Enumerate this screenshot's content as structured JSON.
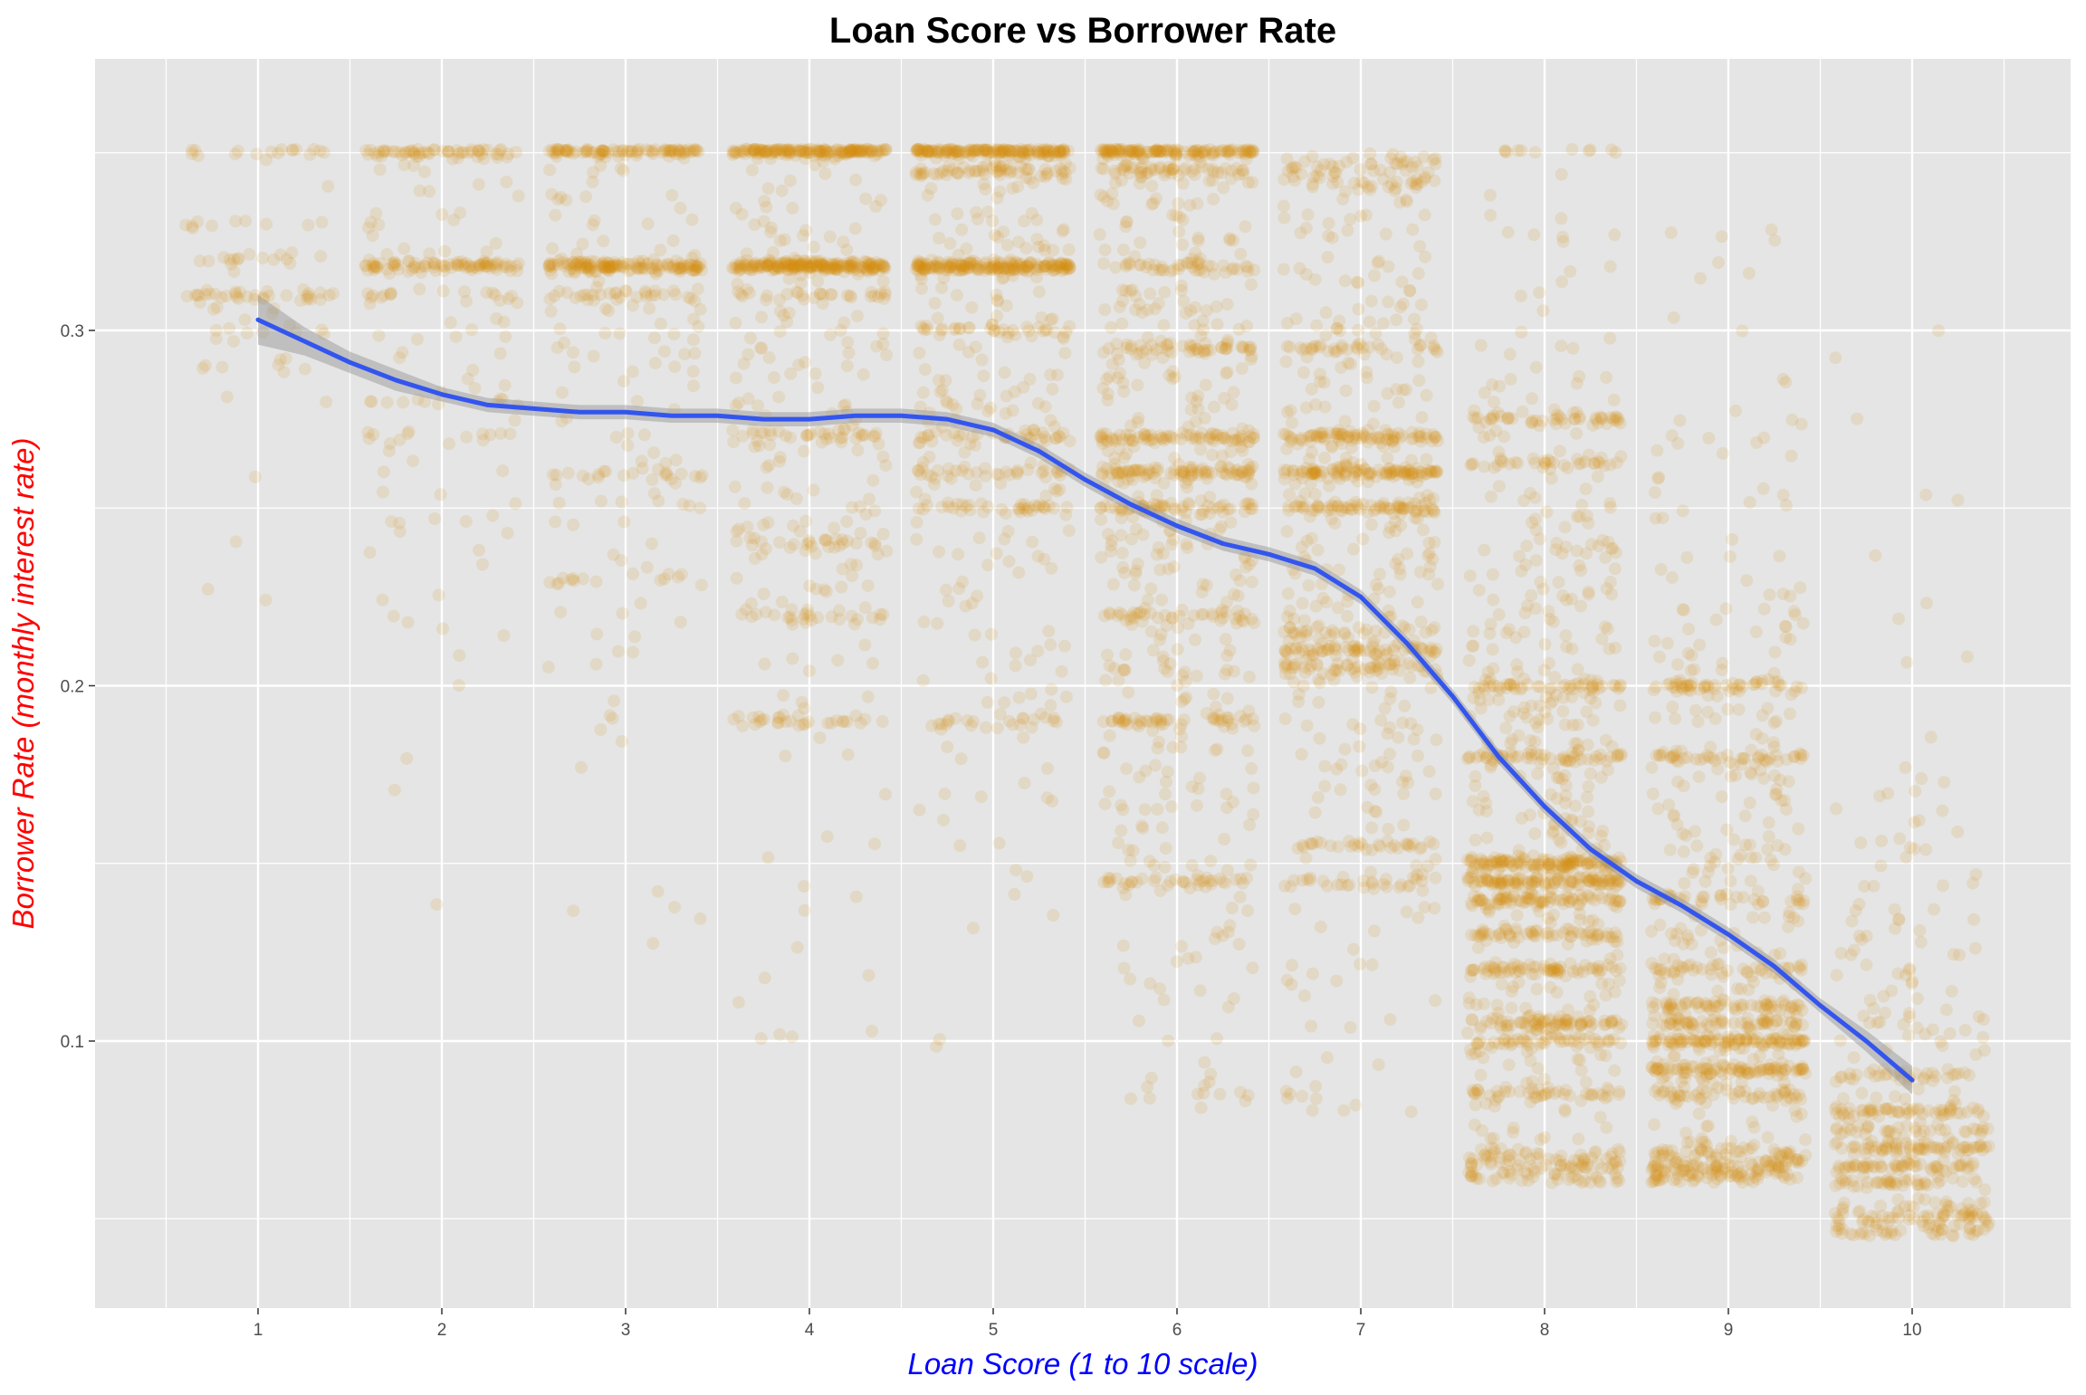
{
  "chart_data": {
    "type": "scatter",
    "title": "Loan Score vs Borrower Rate",
    "xlabel": "Loan Score (1 to 10 scale)",
    "ylabel": "Borrower Rate (monthly interest rate)",
    "xlim": [
      0.1,
      10.55
    ],
    "ylim": [
      0.0375,
      0.3625
    ],
    "x_ticks": [
      1,
      2,
      3,
      4,
      5,
      6,
      7,
      8,
      9,
      10
    ],
    "x_tick_labels": [
      "1",
      "2",
      "3",
      "4",
      "5",
      "6",
      "7",
      "8",
      "9",
      "10"
    ],
    "y_ticks": [
      0.1,
      0.2,
      0.3
    ],
    "y_tick_labels": [
      "0.1",
      "0.2",
      "0.3"
    ],
    "grid": true,
    "jitter_width": 0.42,
    "colors": {
      "points": "#D4900F",
      "smooth_line": "#3355EE",
      "confidence_band": "#999999",
      "panel_background": "#E5E5E5",
      "grid": "#FFFFFF",
      "title": "#000000",
      "xlabel": "#0000FF",
      "ylabel": "#FF0000",
      "tick_labels": "#4D4D4D"
    },
    "series": [
      {
        "type": "scatter",
        "groups": [
          {
            "x": 1,
            "count": 110,
            "bands": [
              [
                0.31,
                0.3
              ],
              [
                0.32,
                0.15
              ],
              [
                0.35,
                0.12
              ],
              [
                0.33,
                0.1
              ],
              [
                0.3,
                0.08
              ],
              [
                0.29,
                0.05
              ]
            ],
            "spread": [
              0.18,
              0.36
            ]
          },
          {
            "x": 2,
            "count": 260,
            "bands": [
              [
                0.318,
                0.3
              ],
              [
                0.31,
                0.08
              ],
              [
                0.35,
                0.08
              ],
              [
                0.28,
                0.05
              ],
              [
                0.27,
                0.05
              ]
            ],
            "spread": [
              0.13,
              0.36
            ]
          },
          {
            "x": 3,
            "count": 420,
            "bands": [
              [
                0.318,
                0.32
              ],
              [
                0.31,
                0.08
              ],
              [
                0.35,
                0.07
              ],
              [
                0.26,
                0.04
              ],
              [
                0.23,
                0.04
              ]
            ],
            "spread": [
              0.12,
              0.36
            ]
          },
          {
            "x": 4,
            "count": 700,
            "bands": [
              [
                0.318,
                0.28
              ],
              [
                0.35,
                0.08
              ],
              [
                0.22,
                0.04
              ],
              [
                0.19,
                0.04
              ],
              [
                0.24,
                0.04
              ],
              [
                0.27,
                0.04
              ],
              [
                0.31,
                0.04
              ]
            ],
            "spread": [
              0.1,
              0.36
            ]
          },
          {
            "x": 5,
            "count": 780,
            "bands": [
              [
                0.318,
                0.22
              ],
              [
                0.35,
                0.08
              ],
              [
                0.345,
                0.06
              ],
              [
                0.26,
                0.05
              ],
              [
                0.27,
                0.04
              ],
              [
                0.25,
                0.04
              ],
              [
                0.19,
                0.03
              ],
              [
                0.3,
                0.03
              ]
            ],
            "spread": [
              0.09,
              0.36
            ]
          },
          {
            "x": 6,
            "count": 1000,
            "bands": [
              [
                0.26,
                0.08
              ],
              [
                0.27,
                0.06
              ],
              [
                0.295,
                0.05
              ],
              [
                0.35,
                0.05
              ],
              [
                0.345,
                0.05
              ],
              [
                0.22,
                0.04
              ],
              [
                0.19,
                0.04
              ],
              [
                0.145,
                0.04
              ],
              [
                0.25,
                0.04
              ],
              [
                0.318,
                0.03
              ]
            ],
            "spread": [
              0.08,
              0.36
            ]
          },
          {
            "x": 7,
            "count": 900,
            "bands": [
              [
                0.26,
                0.12
              ],
              [
                0.27,
                0.08
              ],
              [
                0.25,
                0.07
              ],
              [
                0.21,
                0.06
              ],
              [
                0.205,
                0.05
              ],
              [
                0.215,
                0.04
              ],
              [
                0.295,
                0.03
              ],
              [
                0.155,
                0.03
              ],
              [
                0.145,
                0.03
              ]
            ],
            "spread": [
              0.08,
              0.35
            ]
          },
          {
            "x": 8,
            "count": 1300,
            "bands": [
              [
                0.15,
                0.08
              ],
              [
                0.145,
                0.07
              ],
              [
                0.14,
                0.06
              ],
              [
                0.18,
                0.05
              ],
              [
                0.105,
                0.05
              ],
              [
                0.1,
                0.04
              ],
              [
                0.12,
                0.04
              ],
              [
                0.13,
                0.04
              ],
              [
                0.2,
                0.03
              ],
              [
                0.275,
                0.03
              ],
              [
                0.263,
                0.03
              ],
              [
                0.085,
                0.03
              ]
            ],
            "spread": [
              0.06,
              0.36
            ]
          },
          {
            "x": 9,
            "count": 1000,
            "bands": [
              [
                0.1,
                0.1
              ],
              [
                0.092,
                0.09
              ],
              [
                0.11,
                0.06
              ],
              [
                0.105,
                0.06
              ],
              [
                0.2,
                0.05
              ],
              [
                0.14,
                0.04
              ],
              [
                0.12,
                0.04
              ],
              [
                0.085,
                0.03
              ],
              [
                0.18,
                0.03
              ]
            ],
            "spread": [
              0.06,
              0.35
            ]
          },
          {
            "x": 10,
            "count": 520,
            "bands": [
              [
                0.07,
                0.12
              ],
              [
                0.08,
                0.09
              ],
              [
                0.065,
                0.08
              ],
              [
                0.075,
                0.07
              ],
              [
                0.06,
                0.06
              ],
              [
                0.05,
                0.04
              ],
              [
                0.09,
                0.04
              ]
            ],
            "spread": [
              0.045,
              0.3
            ]
          }
        ]
      },
      {
        "type": "line",
        "x": [
          1,
          1.25,
          1.5,
          1.75,
          2,
          2.25,
          2.5,
          2.75,
          3,
          3.25,
          3.5,
          3.75,
          4,
          4.25,
          4.5,
          4.75,
          5,
          5.25,
          5.5,
          5.75,
          6,
          6.25,
          6.5,
          6.75,
          7,
          7.25,
          7.5,
          7.75,
          8,
          8.25,
          8.5,
          8.75,
          9,
          9.25,
          9.5,
          9.75,
          10
        ],
        "y": [
          0.303,
          0.297,
          0.291,
          0.286,
          0.282,
          0.279,
          0.278,
          0.277,
          0.277,
          0.276,
          0.276,
          0.275,
          0.275,
          0.276,
          0.276,
          0.275,
          0.272,
          0.266,
          0.258,
          0.251,
          0.245,
          0.24,
          0.237,
          0.233,
          0.225,
          0.212,
          0.197,
          0.18,
          0.166,
          0.154,
          0.145,
          0.138,
          0.13,
          0.121,
          0.11,
          0.1,
          0.089
        ],
        "band_halfwidth": [
          0.007,
          0.004,
          0.003,
          0.003,
          0.002,
          0.002,
          0.002,
          0.002,
          0.002,
          0.002,
          0.002,
          0.002,
          0.002,
          0.002,
          0.002,
          0.002,
          0.002,
          0.002,
          0.002,
          0.002,
          0.002,
          0.002,
          0.002,
          0.002,
          0.002,
          0.002,
          0.002,
          0.002,
          0.002,
          0.002,
          0.002,
          0.002,
          0.002,
          0.002,
          0.002,
          0.003,
          0.004
        ]
      }
    ]
  }
}
